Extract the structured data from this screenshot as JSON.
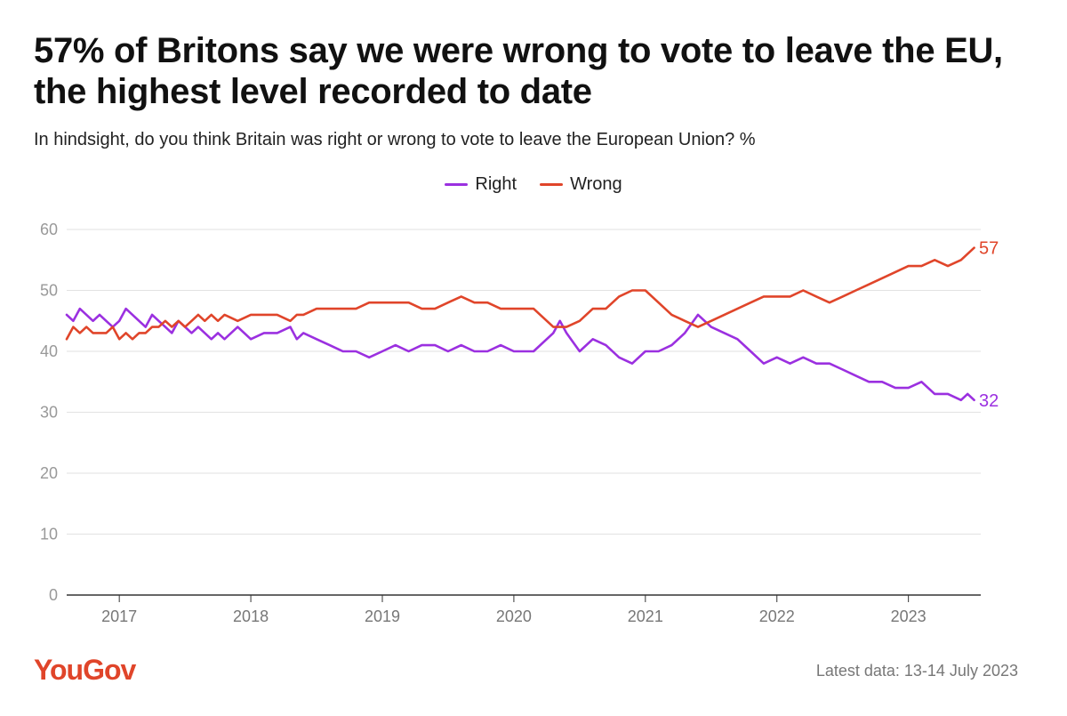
{
  "title": "57% of Britons say we were wrong to vote to leave the EU, the highest level recorded to date",
  "subtitle": "In hindsight, do you think Britain was right or wrong to vote to leave the European Union? %",
  "legend": [
    {
      "label": "Right",
      "color": "#9b30e0"
    },
    {
      "label": "Wrong",
      "color": "#e0452a"
    }
  ],
  "brand": {
    "name": "YouGov",
    "color": "#e0452a"
  },
  "footnote": "Latest data: 13-14 July 2023",
  "chart_data": {
    "type": "line",
    "xlim": [
      2016.6,
      2023.55
    ],
    "ylim": [
      0,
      60
    ],
    "yticks": [
      0,
      10,
      20,
      30,
      40,
      50,
      60
    ],
    "xticks": [
      2017,
      2018,
      2019,
      2020,
      2021,
      2022,
      2023
    ],
    "grid": true,
    "legend_position": "top-center",
    "end_labels": [
      "57",
      "32"
    ],
    "series": [
      {
        "name": "Right",
        "color": "#9b30e0",
        "end_label": "32",
        "x": [
          2016.6,
          2016.65,
          2016.7,
          2016.75,
          2016.8,
          2016.85,
          2016.9,
          2016.95,
          2017.0,
          2017.05,
          2017.1,
          2017.15,
          2017.2,
          2017.25,
          2017.3,
          2017.35,
          2017.4,
          2017.45,
          2017.5,
          2017.55,
          2017.6,
          2017.65,
          2017.7,
          2017.75,
          2017.8,
          2017.9,
          2018.0,
          2018.1,
          2018.2,
          2018.3,
          2018.35,
          2018.4,
          2018.5,
          2018.6,
          2018.7,
          2018.8,
          2018.9,
          2019.0,
          2019.1,
          2019.2,
          2019.3,
          2019.4,
          2019.5,
          2019.6,
          2019.7,
          2019.8,
          2019.9,
          2020.0,
          2020.15,
          2020.3,
          2020.35,
          2020.4,
          2020.5,
          2020.6,
          2020.7,
          2020.8,
          2020.9,
          2021.0,
          2021.1,
          2021.2,
          2021.3,
          2021.4,
          2021.5,
          2021.6,
          2021.7,
          2021.8,
          2021.9,
          2022.0,
          2022.1,
          2022.2,
          2022.3,
          2022.4,
          2022.5,
          2022.6,
          2022.7,
          2022.8,
          2022.9,
          2023.0,
          2023.1,
          2023.2,
          2023.3,
          2023.4,
          2023.45,
          2023.5
        ],
        "values": [
          46,
          45,
          47,
          46,
          45,
          46,
          45,
          44,
          45,
          47,
          46,
          45,
          44,
          46,
          45,
          44,
          43,
          45,
          44,
          43,
          44,
          43,
          42,
          43,
          42,
          44,
          42,
          43,
          43,
          44,
          42,
          43,
          42,
          41,
          40,
          40,
          39,
          40,
          41,
          40,
          41,
          41,
          40,
          41,
          40,
          40,
          41,
          40,
          40,
          43,
          45,
          43,
          40,
          42,
          41,
          39,
          38,
          40,
          40,
          41,
          43,
          46,
          44,
          43,
          42,
          40,
          38,
          39,
          38,
          39,
          38,
          38,
          37,
          36,
          35,
          35,
          34,
          34,
          35,
          33,
          33,
          32,
          33,
          32
        ]
      },
      {
        "name": "Wrong",
        "color": "#e0452a",
        "end_label": "57",
        "x": [
          2016.6,
          2016.65,
          2016.7,
          2016.75,
          2016.8,
          2016.85,
          2016.9,
          2016.95,
          2017.0,
          2017.05,
          2017.1,
          2017.15,
          2017.2,
          2017.25,
          2017.3,
          2017.35,
          2017.4,
          2017.45,
          2017.5,
          2017.55,
          2017.6,
          2017.65,
          2017.7,
          2017.75,
          2017.8,
          2017.9,
          2018.0,
          2018.1,
          2018.2,
          2018.3,
          2018.35,
          2018.4,
          2018.5,
          2018.6,
          2018.7,
          2018.8,
          2018.9,
          2019.0,
          2019.1,
          2019.2,
          2019.3,
          2019.4,
          2019.5,
          2019.6,
          2019.7,
          2019.8,
          2019.9,
          2020.0,
          2020.15,
          2020.3,
          2020.35,
          2020.4,
          2020.5,
          2020.6,
          2020.7,
          2020.8,
          2020.9,
          2021.0,
          2021.1,
          2021.2,
          2021.3,
          2021.4,
          2021.5,
          2021.6,
          2021.7,
          2021.8,
          2021.9,
          2022.0,
          2022.1,
          2022.2,
          2022.3,
          2022.4,
          2022.5,
          2022.6,
          2022.7,
          2022.8,
          2022.9,
          2023.0,
          2023.1,
          2023.2,
          2023.3,
          2023.4,
          2023.45,
          2023.5
        ],
        "values": [
          42,
          44,
          43,
          44,
          43,
          43,
          43,
          44,
          42,
          43,
          42,
          43,
          43,
          44,
          44,
          45,
          44,
          45,
          44,
          45,
          46,
          45,
          46,
          45,
          46,
          45,
          46,
          46,
          46,
          45,
          46,
          46,
          47,
          47,
          47,
          47,
          48,
          48,
          48,
          48,
          47,
          47,
          48,
          49,
          48,
          48,
          47,
          47,
          47,
          44,
          44,
          44,
          45,
          47,
          47,
          49,
          50,
          50,
          48,
          46,
          45,
          44,
          45,
          46,
          47,
          48,
          49,
          49,
          49,
          50,
          49,
          48,
          49,
          50,
          51,
          52,
          53,
          54,
          54,
          55,
          54,
          55,
          56,
          57
        ]
      }
    ]
  }
}
